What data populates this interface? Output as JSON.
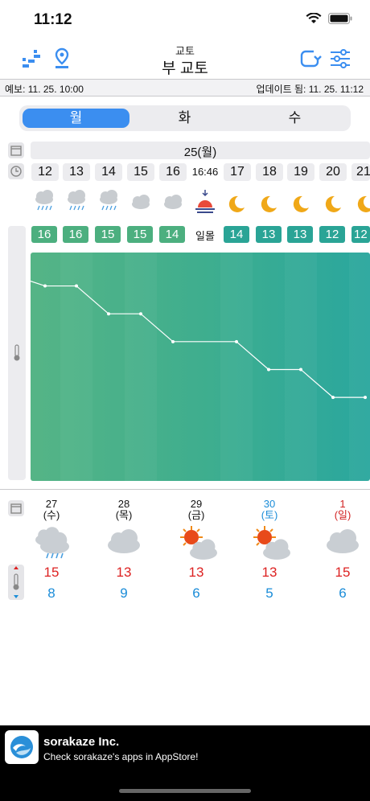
{
  "status": {
    "time": "11:12"
  },
  "header": {
    "city_sub": "교토",
    "city_main": "부 교토"
  },
  "info": {
    "forecast": "예보: 11. 25. 10:00",
    "updated": "업데이트 됨: 11. 25. 11:12"
  },
  "tabs": [
    "월",
    "화",
    "수"
  ],
  "date_label": "25(월)",
  "hours": [
    "12",
    "13",
    "14",
    "15",
    "16",
    "16:46",
    "17",
    "18",
    "19",
    "20",
    "21"
  ],
  "hourly_icons": [
    "rain-cloud-icon",
    "rain-cloud-icon",
    "rain-cloud-icon",
    "cloud-icon",
    "cloud-icon",
    "sunset-icon",
    "moon-star-icon",
    "moon-star-icon",
    "moon-star-icon",
    "moon-star-icon",
    "moon-star-icon"
  ],
  "hourly_temps": [
    "16",
    "16",
    "15",
    "15",
    "14",
    "일몰",
    "14",
    "13",
    "13",
    "12",
    "12"
  ],
  "chart_data": {
    "type": "line",
    "x": [
      "12",
      "13",
      "14",
      "15",
      "16",
      "17",
      "18",
      "19",
      "20",
      "21"
    ],
    "values": [
      16,
      16,
      15,
      15,
      14,
      14,
      13,
      13,
      12,
      12
    ]
  },
  "daily": [
    {
      "date": "27",
      "dow": "(수)",
      "icon": "rain-cloud-icon",
      "hi": "15",
      "lo": "8",
      "color": "#111111"
    },
    {
      "date": "28",
      "dow": "(목)",
      "icon": "cloud-icon",
      "hi": "13",
      "lo": "9",
      "color": "#111111"
    },
    {
      "date": "29",
      "dow": "(금)",
      "icon": "sun-cloud-icon",
      "hi": "13",
      "lo": "6",
      "color": "#111111"
    },
    {
      "date": "30",
      "dow": "(토)",
      "icon": "sun-cloud-icon",
      "hi": "13",
      "lo": "5",
      "color": "#1a8cd8"
    },
    {
      "date": "1",
      "dow": "(일)",
      "icon": "cloud-icon",
      "hi": "15",
      "lo": "6",
      "color": "#d22222"
    }
  ],
  "ad": {
    "title": "sorakaze Inc.",
    "subtitle": "Check sorakaze's apps in AppStore!"
  },
  "colors": {
    "accent": "#3b8ef0",
    "green": "#4caf7f",
    "teal": "#2aa496",
    "high": "#d22222",
    "low": "#1a8cd8"
  }
}
